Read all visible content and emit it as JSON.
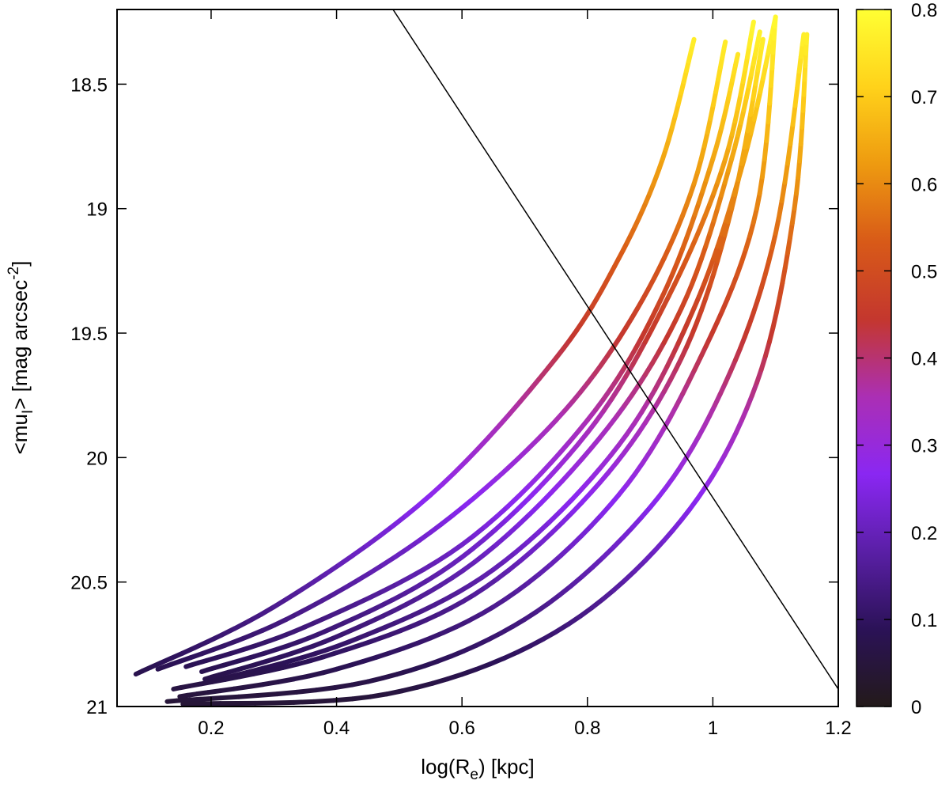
{
  "chart_data": {
    "type": "line",
    "title": "",
    "xlabel": "log(R_e) [kpc]",
    "ylabel": "<mu_I> [mag arcsec^-2]",
    "xlabel_parts": {
      "pre": "log(R",
      "sub": "e",
      "post": ") [kpc]"
    },
    "ylabel_parts": {
      "pre": "<mu",
      "sub": "I",
      "mid": "> [mag arcsec",
      "sup": "-2",
      "post": "]"
    },
    "xlim": [
      0.05,
      1.2
    ],
    "ylim": [
      21.0,
      18.2
    ],
    "y_reversed": true,
    "xticks": [
      0.2,
      0.4,
      0.6,
      0.8,
      1.0,
      1.2
    ],
    "xtick_labels": [
      "0.2",
      "0.4",
      "0.6",
      "0.8",
      "1",
      "1.2"
    ],
    "yticks": [
      18.5,
      19.0,
      19.5,
      20.0,
      20.5,
      21.0
    ],
    "ytick_labels": [
      "18.5",
      "19",
      "19.5",
      "20",
      "20.5",
      "21"
    ],
    "grid": false,
    "colorbar": {
      "range": [
        0,
        0.8
      ],
      "ticks": [
        0,
        0.1,
        0.2,
        0.3,
        0.4,
        0.5,
        0.6,
        0.7,
        0.8
      ],
      "tick_labels": [
        "0",
        "0.1",
        "0.2",
        "0.3",
        "0.4",
        "0.5",
        "0.6",
        "0.7",
        "0.8"
      ],
      "colormap": [
        "#231a1a",
        "#2b1257",
        "#5a1fa6",
        "#8a27f2",
        "#ab2fb4",
        "#c4372e",
        "#d85a18",
        "#ee9a10",
        "#ffd21a",
        "#ffff33"
      ]
    },
    "reference_line": {
      "points": [
        [
          0.49,
          18.2
        ],
        [
          1.2,
          20.93
        ]
      ],
      "color": "#000000"
    },
    "series": [
      {
        "points": [
          [
            0.08,
            20.87
          ],
          [
            0.3,
            20.6
          ],
          [
            0.55,
            20.15
          ],
          [
            0.75,
            19.6
          ],
          [
            0.85,
            19.2
          ],
          [
            0.92,
            18.8
          ],
          [
            0.97,
            18.32
          ]
        ]
      },
      {
        "points": [
          [
            0.115,
            20.85
          ],
          [
            0.32,
            20.65
          ],
          [
            0.55,
            20.3
          ],
          [
            0.75,
            19.85
          ],
          [
            0.88,
            19.4
          ],
          [
            0.97,
            18.9
          ],
          [
            1.02,
            18.33
          ]
        ]
      },
      {
        "points": [
          [
            0.16,
            20.84
          ],
          [
            0.35,
            20.68
          ],
          [
            0.6,
            20.35
          ],
          [
            0.8,
            19.85
          ],
          [
            0.92,
            19.35
          ],
          [
            1.0,
            18.8
          ],
          [
            1.04,
            18.38
          ]
        ]
      },
      {
        "points": [
          [
            0.185,
            20.86
          ],
          [
            0.38,
            20.7
          ],
          [
            0.6,
            20.4
          ],
          [
            0.8,
            19.9
          ],
          [
            0.93,
            19.35
          ],
          [
            1.02,
            18.8
          ],
          [
            1.065,
            18.25
          ]
        ]
      },
      {
        "points": [
          [
            0.19,
            20.89
          ],
          [
            0.4,
            20.72
          ],
          [
            0.62,
            20.42
          ],
          [
            0.82,
            19.92
          ],
          [
            0.95,
            19.4
          ],
          [
            1.03,
            18.8
          ],
          [
            1.075,
            18.29
          ]
        ]
      },
      {
        "points": [
          [
            0.2,
            20.9
          ],
          [
            0.42,
            20.74
          ],
          [
            0.65,
            20.45
          ],
          [
            0.85,
            19.95
          ],
          [
            0.97,
            19.4
          ],
          [
            1.05,
            18.8
          ],
          [
            1.1,
            18.23
          ]
        ]
      },
      {
        "points": [
          [
            0.14,
            20.93
          ],
          [
            0.38,
            20.8
          ],
          [
            0.62,
            20.55
          ],
          [
            0.82,
            20.1
          ],
          [
            0.95,
            19.6
          ],
          [
            1.03,
            19.0
          ],
          [
            1.08,
            18.32
          ]
        ]
      },
      {
        "points": [
          [
            0.15,
            20.96
          ],
          [
            0.4,
            20.85
          ],
          [
            0.65,
            20.6
          ],
          [
            0.85,
            20.15
          ],
          [
            0.98,
            19.6
          ],
          [
            1.07,
            19.0
          ],
          [
            1.1,
            18.23
          ]
        ]
      },
      {
        "points": [
          [
            0.13,
            20.98
          ],
          [
            0.45,
            20.9
          ],
          [
            0.7,
            20.65
          ],
          [
            0.9,
            20.2
          ],
          [
            1.02,
            19.7
          ],
          [
            1.1,
            19.1
          ],
          [
            1.145,
            18.3
          ]
        ]
      },
      {
        "points": [
          [
            0.155,
            20.99
          ],
          [
            0.48,
            20.95
          ],
          [
            0.75,
            20.7
          ],
          [
            0.95,
            20.25
          ],
          [
            1.07,
            19.7
          ],
          [
            1.13,
            19.0
          ],
          [
            1.15,
            18.3
          ]
        ]
      }
    ]
  }
}
